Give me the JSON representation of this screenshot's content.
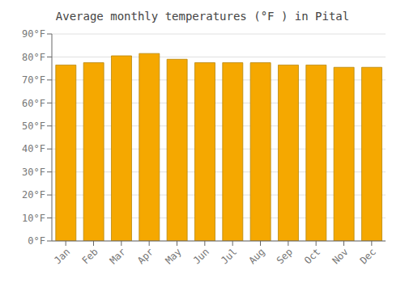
{
  "chart_data": {
    "type": "bar",
    "title": "Average monthly temperatures (°F ) in Pital",
    "categories": [
      "Jan",
      "Feb",
      "Mar",
      "Apr",
      "May",
      "Jun",
      "Jul",
      "Aug",
      "Sep",
      "Oct",
      "Nov",
      "Dec"
    ],
    "values": [
      76.5,
      77.5,
      80.5,
      81.5,
      79.0,
      77.5,
      77.5,
      77.5,
      76.5,
      76.5,
      75.5,
      75.5
    ],
    "color": "#F5A800",
    "ylim": [
      0,
      90
    ],
    "yticks": [
      {
        "value": 0,
        "label": "0°F"
      },
      {
        "value": 10,
        "label": "10°F"
      },
      {
        "value": 20,
        "label": "20°F"
      },
      {
        "value": 30,
        "label": "30°F"
      },
      {
        "value": 40,
        "label": "40°F"
      },
      {
        "value": 50,
        "label": "50°F"
      },
      {
        "value": 60,
        "label": "60°F"
      },
      {
        "value": 70,
        "label": "70°F"
      },
      {
        "value": 80,
        "label": "80°F"
      },
      {
        "value": 90,
        "label": "90°F"
      }
    ],
    "grid": true
  }
}
